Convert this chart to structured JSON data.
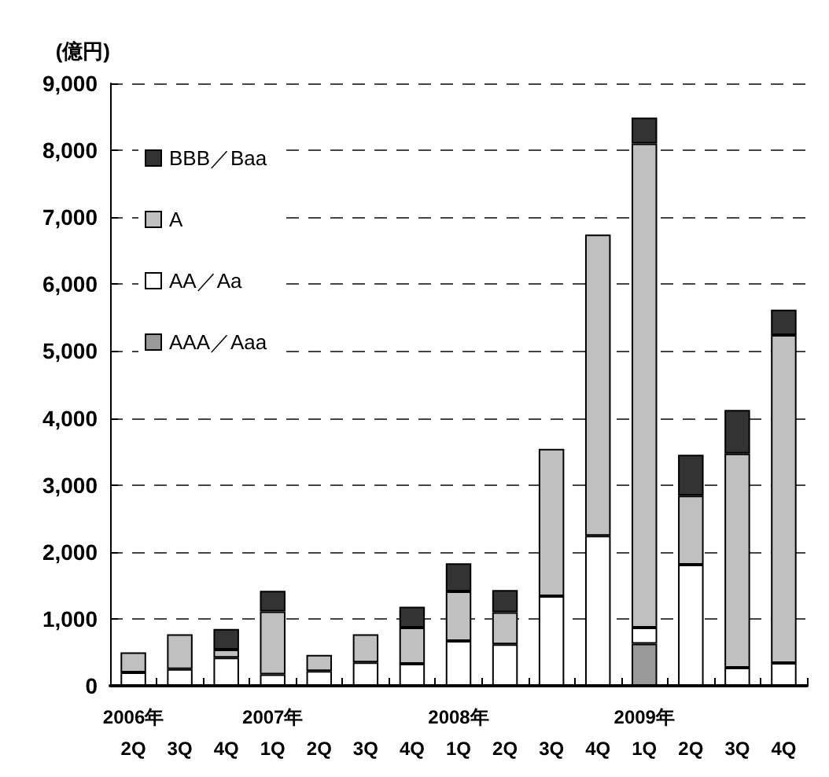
{
  "chart_data": {
    "type": "bar",
    "stacked": true,
    "ylabel": "(億円)",
    "categories": [
      "2006年\n2Q",
      "3Q",
      "4Q",
      "2007年\n1Q",
      "2Q",
      "3Q",
      "4Q",
      "2008年\n1Q",
      "2Q",
      "3Q",
      "4Q",
      "2009年\n1Q",
      "2Q",
      "3Q",
      "4Q"
    ],
    "series": [
      {
        "name": "AAA／Aaa",
        "color": "#999999",
        "values": [
          null,
          null,
          null,
          null,
          null,
          null,
          null,
          null,
          null,
          null,
          null,
          630,
          null,
          null,
          null
        ]
      },
      {
        "name": "AA／Aa",
        "color": "#ffffff",
        "values": [
          200,
          250,
          420,
          170,
          220,
          350,
          330,
          670,
          620,
          1340,
          2240,
          240,
          1810,
          270,
          340
        ]
      },
      {
        "name": "A",
        "color": "#c0c0c0",
        "values": [
          300,
          520,
          120,
          940,
          240,
          420,
          540,
          740,
          480,
          2200,
          4500,
          7230,
          1030,
          3200,
          4900
        ]
      },
      {
        "name": "BBB／Baa",
        "color": "#333333",
        "values": [
          null,
          null,
          310,
          310,
          null,
          null,
          310,
          420,
          330,
          null,
          null,
          390,
          610,
          650,
          380
        ]
      }
    ],
    "ylim": [
      0,
      9000
    ],
    "yticks": [
      0,
      {
        "value": 1000,
        "label": "1,000"
      },
      {
        "value": 2000,
        "label": "2,000"
      },
      {
        "value": 3000,
        "label": "3,000"
      },
      {
        "value": 4000,
        "label": "4,000"
      },
      {
        "value": 5000,
        "label": "5,000"
      },
      {
        "value": 6000,
        "label": "6,000"
      },
      {
        "value": 7000,
        "label": "7,000"
      },
      {
        "value": 8000,
        "label": "8,000"
      },
      {
        "value": 9000,
        "label": "9,000"
      }
    ],
    "grid": "y",
    "legend": "top left"
  }
}
